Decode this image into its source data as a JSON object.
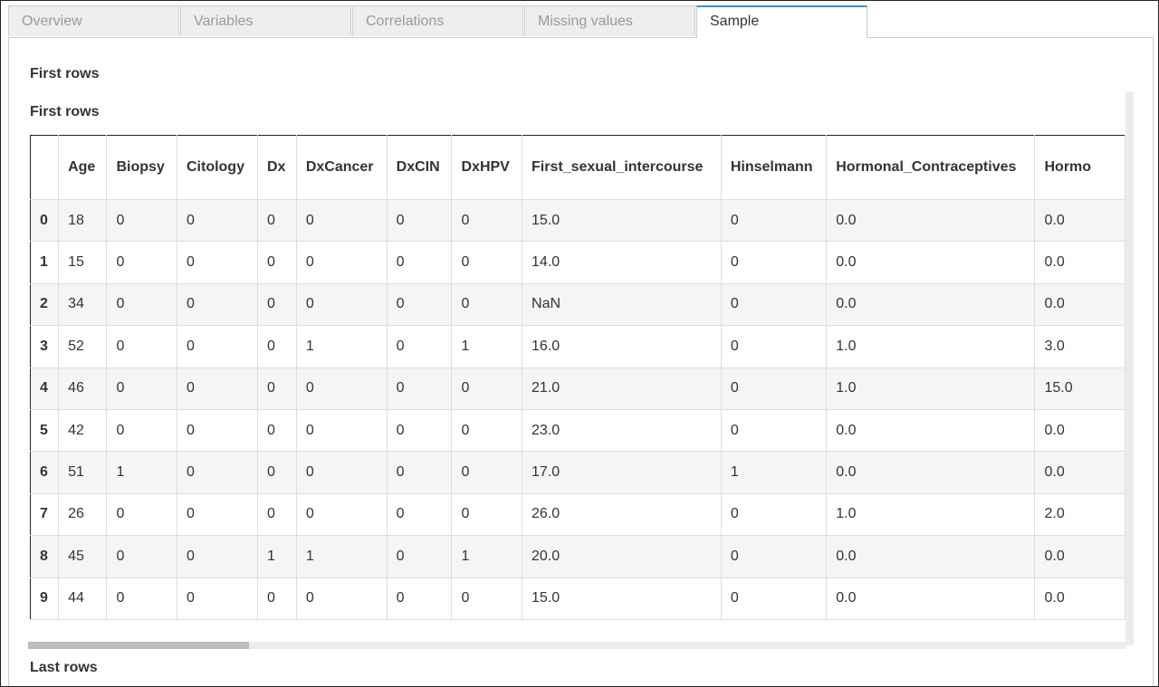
{
  "tabs": [
    "Overview",
    "Variables",
    "Correlations",
    "Missing values",
    "Sample"
  ],
  "active_tab": 4,
  "section_title": "First rows",
  "table_title": "First rows",
  "table": {
    "columns": [
      "Age",
      "Biopsy",
      "Citology",
      "Dx",
      "DxCancer",
      "DxCIN",
      "DxHPV",
      "First_sexual_intercourse",
      "Hinselmann",
      "Hormonal_Contraceptives",
      "Hormo"
    ],
    "index": [
      "0",
      "1",
      "2",
      "3",
      "4",
      "5",
      "6",
      "7",
      "8",
      "9"
    ],
    "rows": [
      [
        "18",
        "0",
        "0",
        "0",
        "0",
        "0",
        "0",
        "15.0",
        "0",
        "0.0",
        "0.0"
      ],
      [
        "15",
        "0",
        "0",
        "0",
        "0",
        "0",
        "0",
        "14.0",
        "0",
        "0.0",
        "0.0"
      ],
      [
        "34",
        "0",
        "0",
        "0",
        "0",
        "0",
        "0",
        "NaN",
        "0",
        "0.0",
        "0.0"
      ],
      [
        "52",
        "0",
        "0",
        "0",
        "1",
        "0",
        "1",
        "16.0",
        "0",
        "1.0",
        "3.0"
      ],
      [
        "46",
        "0",
        "0",
        "0",
        "0",
        "0",
        "0",
        "21.0",
        "0",
        "1.0",
        "15.0"
      ],
      [
        "42",
        "0",
        "0",
        "0",
        "0",
        "0",
        "0",
        "23.0",
        "0",
        "0.0",
        "0.0"
      ],
      [
        "51",
        "1",
        "0",
        "0",
        "0",
        "0",
        "0",
        "17.0",
        "1",
        "0.0",
        "0.0"
      ],
      [
        "26",
        "0",
        "0",
        "0",
        "0",
        "0",
        "0",
        "26.0",
        "0",
        "1.0",
        "2.0"
      ],
      [
        "45",
        "0",
        "0",
        "1",
        "1",
        "0",
        "1",
        "20.0",
        "0",
        "0.0",
        "0.0"
      ],
      [
        "44",
        "0",
        "0",
        "0",
        "0",
        "0",
        "0",
        "15.0",
        "0",
        "0.0",
        "0.0"
      ]
    ]
  },
  "next_section_title": "Last rows"
}
